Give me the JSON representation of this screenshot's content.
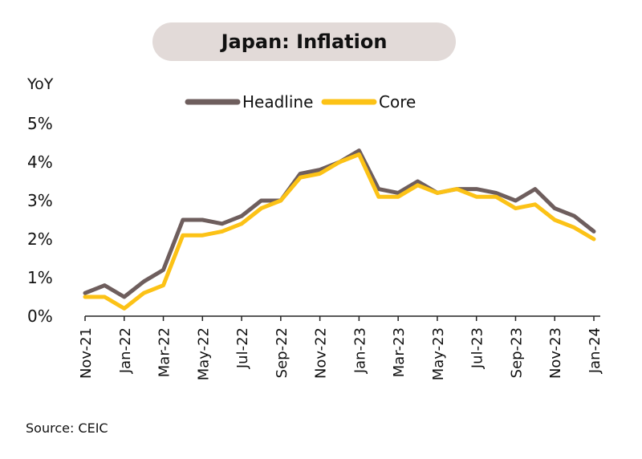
{
  "title": "Japan: Inflation",
  "source": "Source: CEIC",
  "chart_data": {
    "type": "line",
    "ylabel": "YoY",
    "xlabel": "",
    "ylim": [
      0,
      5
    ],
    "yticks": [
      "0%",
      "1%",
      "2%",
      "3%",
      "4%",
      "5%"
    ],
    "legend_position": "top-center",
    "x": [
      "Nov-21",
      "Dec-21",
      "Jan-22",
      "Feb-22",
      "Mar-22",
      "Apr-22",
      "May-22",
      "Jun-22",
      "Jul-22",
      "Aug-22",
      "Sep-22",
      "Oct-22",
      "Nov-22",
      "Dec-22",
      "Jan-23",
      "Feb-23",
      "Mar-23",
      "Apr-23",
      "May-23",
      "Jun-23",
      "Jul-23",
      "Aug-23",
      "Sep-23",
      "Oct-23",
      "Nov-23",
      "Dec-23",
      "Jan-24"
    ],
    "xtick_labels": [
      "Nov-21",
      "Jan-22",
      "Mar-22",
      "May-22",
      "Jul-22",
      "Sep-22",
      "Nov-22",
      "Jan-23",
      "Mar-23",
      "May-23",
      "Jul-23",
      "Sep-23",
      "Nov-23",
      "Jan-24"
    ],
    "series": [
      {
        "name": "Headline",
        "color": "#6e5e5d",
        "values": [
          0.6,
          0.8,
          0.5,
          0.9,
          1.2,
          2.5,
          2.5,
          2.4,
          2.6,
          3.0,
          3.0,
          3.7,
          3.8,
          4.0,
          4.3,
          3.3,
          3.2,
          3.5,
          3.2,
          3.3,
          3.3,
          3.2,
          3.0,
          3.3,
          2.8,
          2.6,
          2.2
        ]
      },
      {
        "name": "Core",
        "color": "#fcc216",
        "values": [
          0.5,
          0.5,
          0.2,
          0.6,
          0.8,
          2.1,
          2.1,
          2.2,
          2.4,
          2.8,
          3.0,
          3.6,
          3.7,
          4.0,
          4.2,
          3.1,
          3.1,
          3.4,
          3.2,
          3.3,
          3.1,
          3.1,
          2.8,
          2.9,
          2.5,
          2.3,
          2.0
        ]
      }
    ]
  }
}
